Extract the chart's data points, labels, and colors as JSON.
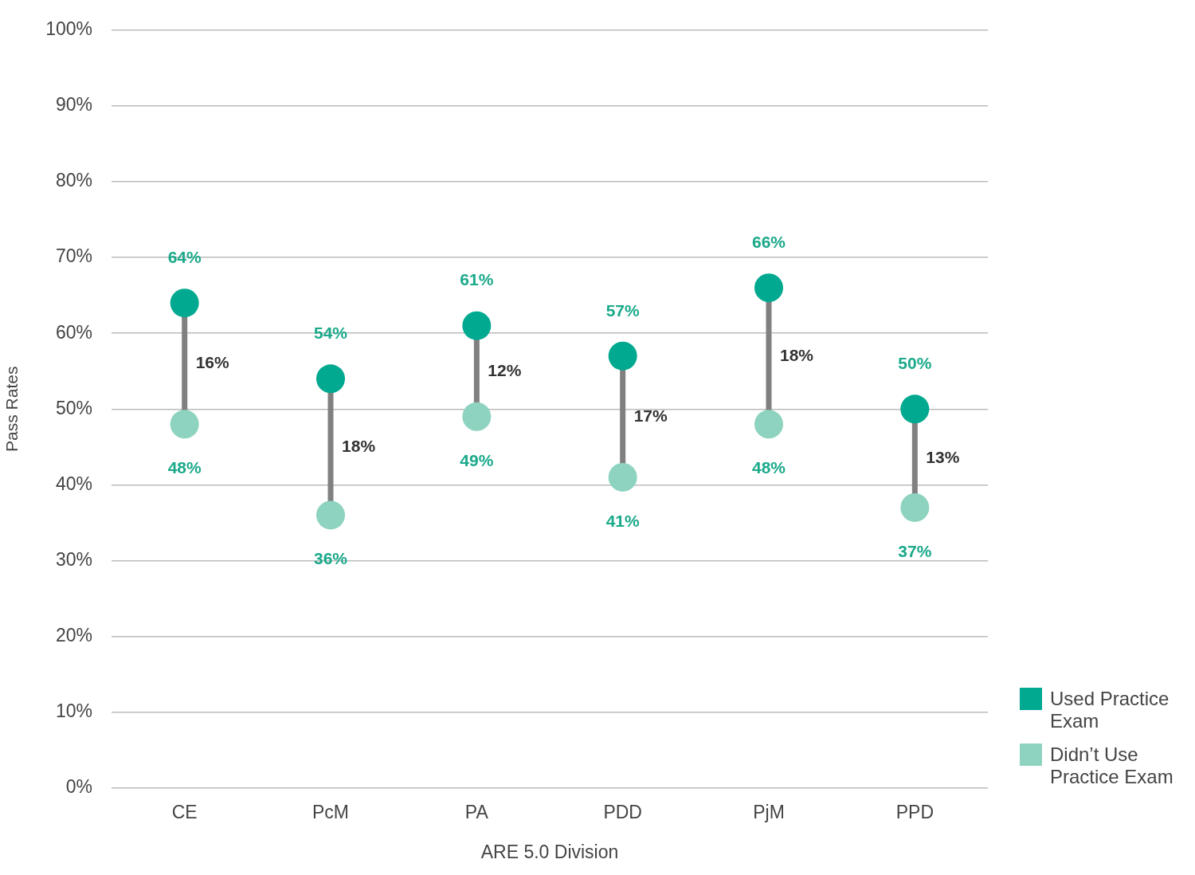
{
  "chart_data": {
    "type": "scatter",
    "xlabel": "ARE 5.0 Division",
    "ylabel": "Pass Rates",
    "categories": [
      "CE",
      "PcM",
      "PA",
      "PDD",
      "PjM",
      "PPD"
    ],
    "series": [
      {
        "name": "Used Practice Exam",
        "color": "#00a98f",
        "values": [
          64,
          54,
          61,
          57,
          66,
          50
        ],
        "value_labels": [
          "64%",
          "54%",
          "61%",
          "57%",
          "66%",
          "50%"
        ]
      },
      {
        "name": "Didn’t Use Practice Exam",
        "color": "#8dd3bf",
        "values": [
          48,
          36,
          49,
          41,
          48,
          37
        ],
        "value_labels": [
          "48%",
          "36%",
          "49%",
          "41%",
          "48%",
          "37%"
        ]
      }
    ],
    "annotations": [
      "16%",
      "18%",
      "12%",
      "17%",
      "18%",
      "13%"
    ],
    "ylim": [
      0,
      100
    ],
    "yticks": [
      {
        "value": 0,
        "label": "0%"
      },
      {
        "value": 10,
        "label": "10%"
      },
      {
        "value": 20,
        "label": "20%"
      },
      {
        "value": 30,
        "label": "30%"
      },
      {
        "value": 40,
        "label": "40%"
      },
      {
        "value": 50,
        "label": "50%"
      },
      {
        "value": 60,
        "label": "60%"
      },
      {
        "value": 70,
        "label": "70%"
      },
      {
        "value": 80,
        "label": "80%"
      },
      {
        "value": 90,
        "label": "90%"
      },
      {
        "value": 100,
        "label": "100%"
      }
    ],
    "grid": "y",
    "legend": "bottom right",
    "marker": "circle"
  }
}
